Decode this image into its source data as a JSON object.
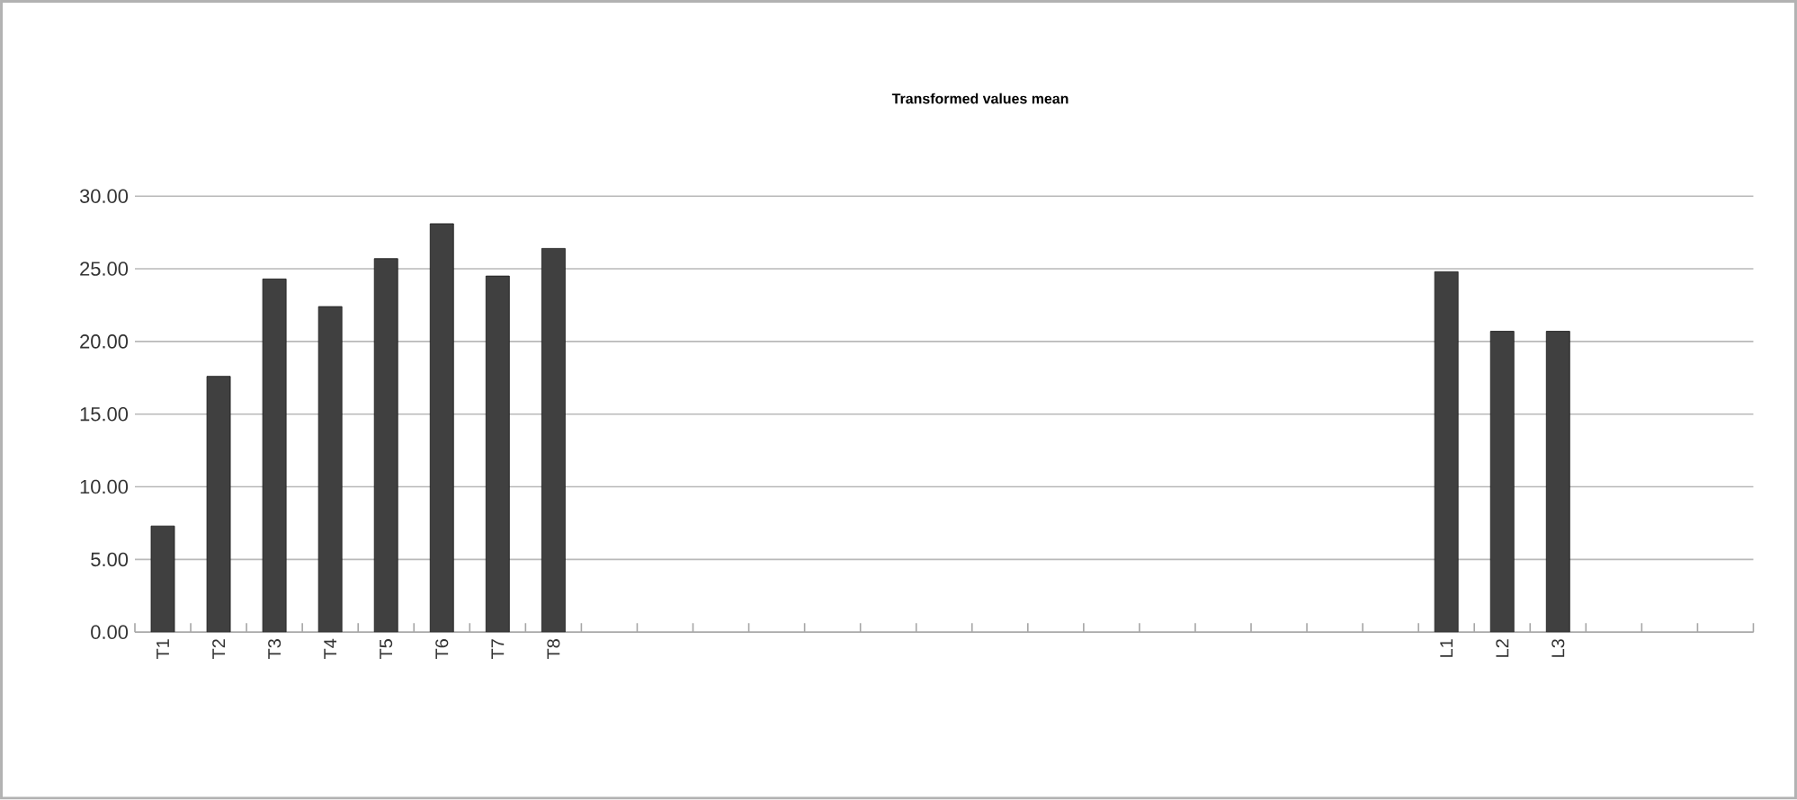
{
  "chart_data": {
    "type": "bar",
    "title": "**Transformed values mean**",
    "categories": [
      "T1",
      "T2",
      "T3",
      "T4",
      "T5",
      "T6",
      "T7",
      "T8",
      null,
      null,
      null,
      null,
      null,
      null,
      null,
      null,
      null,
      null,
      null,
      null,
      null,
      null,
      null,
      "L1",
      "L2",
      "L3",
      null,
      null,
      null
    ],
    "values": [
      7.3,
      17.6,
      24.3,
      22.4,
      25.7,
      28.1,
      24.5,
      26.4,
      null,
      null,
      null,
      null,
      null,
      null,
      null,
      null,
      null,
      null,
      null,
      null,
      null,
      null,
      null,
      24.8,
      20.7,
      20.7,
      null,
      null,
      null
    ],
    "color": "#404040",
    "ylim": [
      0,
      30
    ],
    "yticks": [
      {
        "value": 0,
        "label": "0.00"
      },
      {
        "value": 5,
        "label": "5.00"
      },
      {
        "value": 10,
        "label": "10.00"
      },
      {
        "value": 15,
        "label": "15.00"
      },
      {
        "value": 20,
        "label": "20.00"
      },
      {
        "value": 25,
        "label": "25.00"
      },
      {
        "value": 30,
        "label": "30.00"
      }
    ],
    "grid": "y"
  }
}
